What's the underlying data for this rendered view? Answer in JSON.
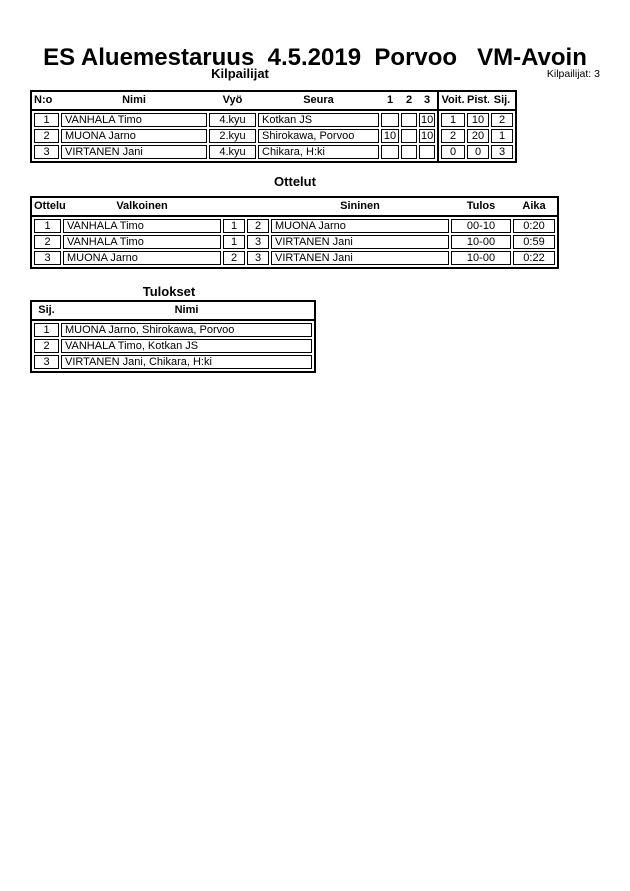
{
  "page": {
    "title": "ES Aluemestaruus  4.5.2019  Porvoo   VM-Avoin",
    "competitors_count": "Kilpailijat: 3"
  },
  "competitors": {
    "section_title": "Kilpailijat",
    "headers": {
      "no": "N:o",
      "name": "Nimi",
      "belt": "Vyö",
      "club": "Seura",
      "m1": "1",
      "m2": "2",
      "m3": "3",
      "wins": "Voit.",
      "points": "Pist.",
      "place": "Sij."
    },
    "rows": [
      {
        "no": "1",
        "name": "VANHALA Timo",
        "belt": "4.kyu",
        "club": "Kotkan JS",
        "m1": "",
        "m2": "",
        "m3": "10",
        "wins": "1",
        "points": "10",
        "place": "2"
      },
      {
        "no": "2",
        "name": "MUONA Jarno",
        "belt": "2.kyu",
        "club": "Shirokawa, Porvoo",
        "m1": "10",
        "m2": "",
        "m3": "10",
        "wins": "2",
        "points": "20",
        "place": "1"
      },
      {
        "no": "3",
        "name": "VIRTANEN Jani",
        "belt": "4.kyu",
        "club": "Chikara, H:ki",
        "m1": "",
        "m2": "",
        "m3": "",
        "wins": "0",
        "points": "0",
        "place": "3"
      }
    ]
  },
  "matches": {
    "section_title": "Ottelut",
    "headers": {
      "match": "Ottelu",
      "white": "Valkoinen",
      "blue": "Sininen",
      "result": "Tulos",
      "time": "Aika"
    },
    "rows": [
      {
        "no": "1",
        "white": "VANHALA Timo",
        "white_no": "1",
        "blue_no": "2",
        "blue": "MUONA Jarno",
        "result": "00-10",
        "time": "0:20"
      },
      {
        "no": "2",
        "white": "VANHALA Timo",
        "white_no": "1",
        "blue_no": "3",
        "blue": "VIRTANEN Jani",
        "result": "10-00",
        "time": "0:59"
      },
      {
        "no": "3",
        "white": "MUONA Jarno",
        "white_no": "2",
        "blue_no": "3",
        "blue": "VIRTANEN Jani",
        "result": "10-00",
        "time": "0:22"
      }
    ]
  },
  "results": {
    "section_title": "Tulokset",
    "headers": {
      "place": "Sij.",
      "name": "Nimi"
    },
    "rows": [
      {
        "place": "1",
        "name": "MUONA Jarno, Shirokawa, Porvoo"
      },
      {
        "place": "2",
        "name": "VANHALA Timo, Kotkan JS"
      },
      {
        "place": "3",
        "name": "VIRTANEN Jani, Chikara, H:ki"
      }
    ]
  }
}
